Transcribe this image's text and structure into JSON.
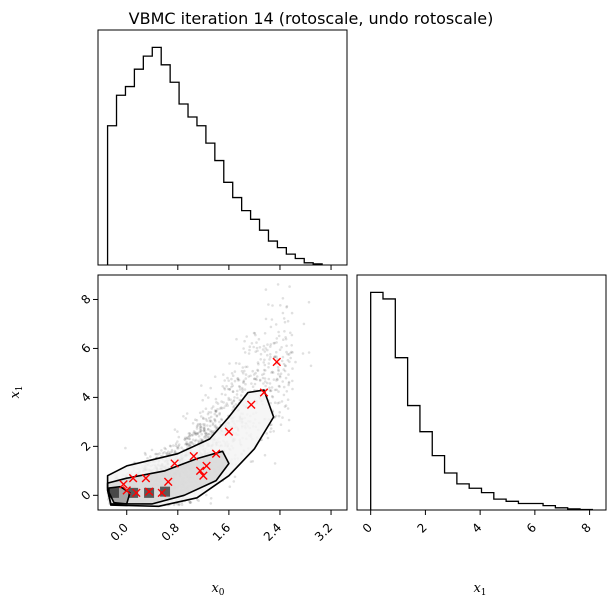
{
  "title": "VBMC iteration 14 (rotoscale, undo rotoscale)",
  "labels": {
    "x0": "x",
    "x0_sub": "0",
    "x1": "x",
    "x1_sub": "1"
  },
  "colors": {
    "hist": "#000000",
    "points": "#000000",
    "contour": "#000000",
    "markers": "#ff0000"
  },
  "chart_data": [
    {
      "panel": "top-left",
      "type": "histogram",
      "variable": "x0",
      "x_range": [
        -0.45,
        3.45
      ],
      "y_range": [
        0,
        1.08
      ],
      "ticks": [
        0.0,
        0.8,
        1.6,
        2.4,
        3.2
      ],
      "tick_labels_shown": false,
      "bin_edges": [
        -0.3,
        -0.16,
        -0.02,
        0.12,
        0.26,
        0.4,
        0.54,
        0.68,
        0.82,
        0.96,
        1.1,
        1.24,
        1.38,
        1.52,
        1.66,
        1.8,
        1.94,
        2.08,
        2.22,
        2.36,
        2.5,
        2.64,
        2.78,
        2.92,
        3.06
      ],
      "values": [
        0.64,
        0.78,
        0.82,
        0.9,
        0.96,
        1.0,
        0.92,
        0.84,
        0.74,
        0.68,
        0.64,
        0.56,
        0.48,
        0.38,
        0.31,
        0.25,
        0.21,
        0.16,
        0.11,
        0.08,
        0.05,
        0.03,
        0.01,
        0.005
      ]
    },
    {
      "panel": "bottom-left",
      "type": "scatter",
      "x_variable": "x0",
      "y_variable": "x1",
      "x_range": [
        -0.45,
        3.45
      ],
      "y_range": [
        -0.6,
        9.0
      ],
      "x_ticks": [
        0.0,
        0.8,
        1.6,
        2.4,
        3.2
      ],
      "x_tick_labels": [
        "0.0",
        "0.8",
        "1.6",
        "2.4",
        "3.2"
      ],
      "y_ticks": [
        0,
        2,
        4,
        6,
        8
      ],
      "y_tick_labels": [
        "0",
        "2",
        "4",
        "6",
        "8"
      ],
      "density_ridge": {
        "x": [
          -0.3,
          0.2,
          0.8,
          1.4,
          2.0,
          2.4,
          2.8,
          3.2
        ],
        "y": [
          0.05,
          0.25,
          0.9,
          2.3,
          4.2,
          5.2,
          6.2,
          7.2
        ]
      },
      "contours": [
        {
          "level": "inner",
          "points": [
            [
              -0.28,
              0.12
            ],
            [
              -0.2,
              -0.3
            ],
            [
              0.0,
              -0.35
            ],
            [
              0.05,
              0.1
            ],
            [
              -0.1,
              0.35
            ],
            [
              -0.28,
              0.3
            ]
          ]
        },
        {
          "level": "middle",
          "points": [
            [
              -0.3,
              0.2
            ],
            [
              -0.25,
              -0.35
            ],
            [
              0.4,
              -0.35
            ],
            [
              0.9,
              0.0
            ],
            [
              1.4,
              0.6
            ],
            [
              1.6,
              1.3
            ],
            [
              1.5,
              1.8
            ],
            [
              1.1,
              1.5
            ],
            [
              0.6,
              1.0
            ],
            [
              0.0,
              0.7
            ],
            [
              -0.3,
              0.5
            ]
          ]
        },
        {
          "level": "outer",
          "points": [
            [
              -0.3,
              0.3
            ],
            [
              -0.25,
              -0.4
            ],
            [
              0.5,
              -0.45
            ],
            [
              1.1,
              -0.1
            ],
            [
              1.6,
              0.8
            ],
            [
              2.0,
              1.9
            ],
            [
              2.3,
              3.2
            ],
            [
              2.15,
              4.3
            ],
            [
              1.9,
              4.2
            ],
            [
              1.6,
              3.2
            ],
            [
              1.3,
              2.3
            ],
            [
              0.8,
              1.7
            ],
            [
              0.0,
              1.2
            ],
            [
              -0.3,
              0.8
            ]
          ]
        }
      ],
      "markers": [
        {
          "x": -0.05,
          "y": 0.45
        },
        {
          "x": 0.0,
          "y": 0.2
        },
        {
          "x": 0.1,
          "y": 0.7
        },
        {
          "x": 0.15,
          "y": 0.1
        },
        {
          "x": 0.3,
          "y": 0.7
        },
        {
          "x": 0.35,
          "y": 0.15
        },
        {
          "x": 0.55,
          "y": 0.1
        },
        {
          "x": 0.65,
          "y": 0.55
        },
        {
          "x": 0.75,
          "y": 1.3
        },
        {
          "x": 1.05,
          "y": 1.6
        },
        {
          "x": 1.15,
          "y": 1.0
        },
        {
          "x": 1.2,
          "y": 0.8
        },
        {
          "x": 1.25,
          "y": 1.2
        },
        {
          "x": 1.4,
          "y": 1.7
        },
        {
          "x": 1.6,
          "y": 2.6
        },
        {
          "x": 1.95,
          "y": 3.7
        },
        {
          "x": 2.15,
          "y": 4.2
        },
        {
          "x": 2.35,
          "y": 5.45
        }
      ]
    },
    {
      "panel": "bottom-right",
      "type": "histogram",
      "variable": "x1",
      "x_range": [
        -0.5,
        8.6
      ],
      "y_range": [
        0,
        1.08
      ],
      "x_ticks": [
        0,
        2,
        4,
        6,
        8
      ],
      "x_tick_labels": [
        "0",
        "2",
        "4",
        "6",
        "8"
      ],
      "bin_edges": [
        0.0,
        0.45,
        0.9,
        1.35,
        1.8,
        2.25,
        2.7,
        3.15,
        3.6,
        4.05,
        4.5,
        4.95,
        5.4,
        5.85,
        6.3,
        6.75,
        7.2,
        7.65,
        8.1
      ],
      "values": [
        1.0,
        0.97,
        0.7,
        0.48,
        0.36,
        0.25,
        0.17,
        0.12,
        0.1,
        0.08,
        0.05,
        0.04,
        0.03,
        0.03,
        0.02,
        0.01,
        0.005,
        0.002
      ]
    }
  ]
}
